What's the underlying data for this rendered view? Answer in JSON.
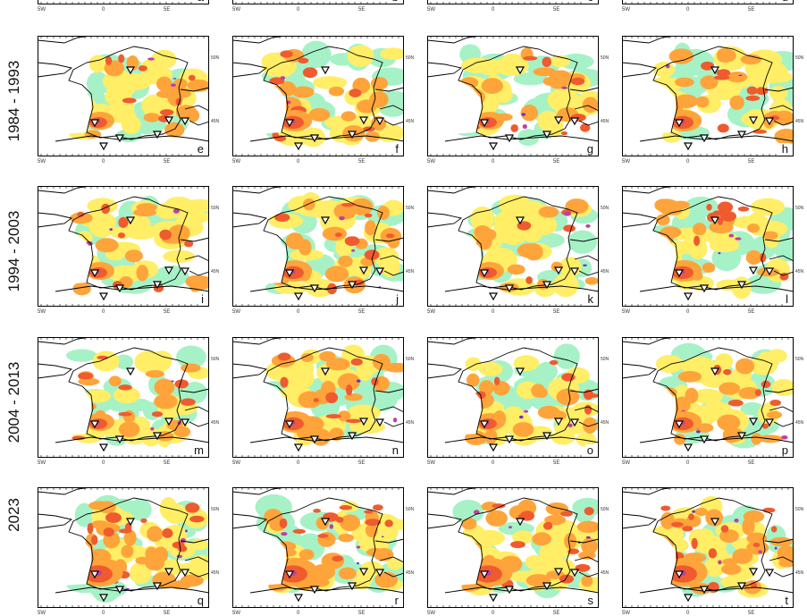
{
  "row_labels": [
    "1984 - 1993",
    "1994 - 2003",
    "2004 - 2013",
    "2023"
  ],
  "lon_ticks": [
    "5W",
    "0",
    "5E"
  ],
  "lat_ticks": [
    "50N",
    "45N"
  ],
  "panel_letters": {
    "top": [
      "a",
      "b",
      "c",
      "d"
    ],
    "row1": [
      "e",
      "f",
      "g",
      "h"
    ],
    "row2": [
      "i",
      "j",
      "k",
      "l"
    ],
    "row3": [
      "m",
      "n",
      "o",
      "p"
    ],
    "row4": [
      "q",
      "r",
      "s",
      "t"
    ]
  },
  "colors": {
    "light_green": "#a6f2c6",
    "yellow": "#ffee66",
    "orange": "#ffa43b",
    "red_orange": "#ef5b2f",
    "magenta": "#c040a0",
    "purple": "#7030c0"
  },
  "icons": {
    "station_marker": "triangle-down-icon"
  }
}
